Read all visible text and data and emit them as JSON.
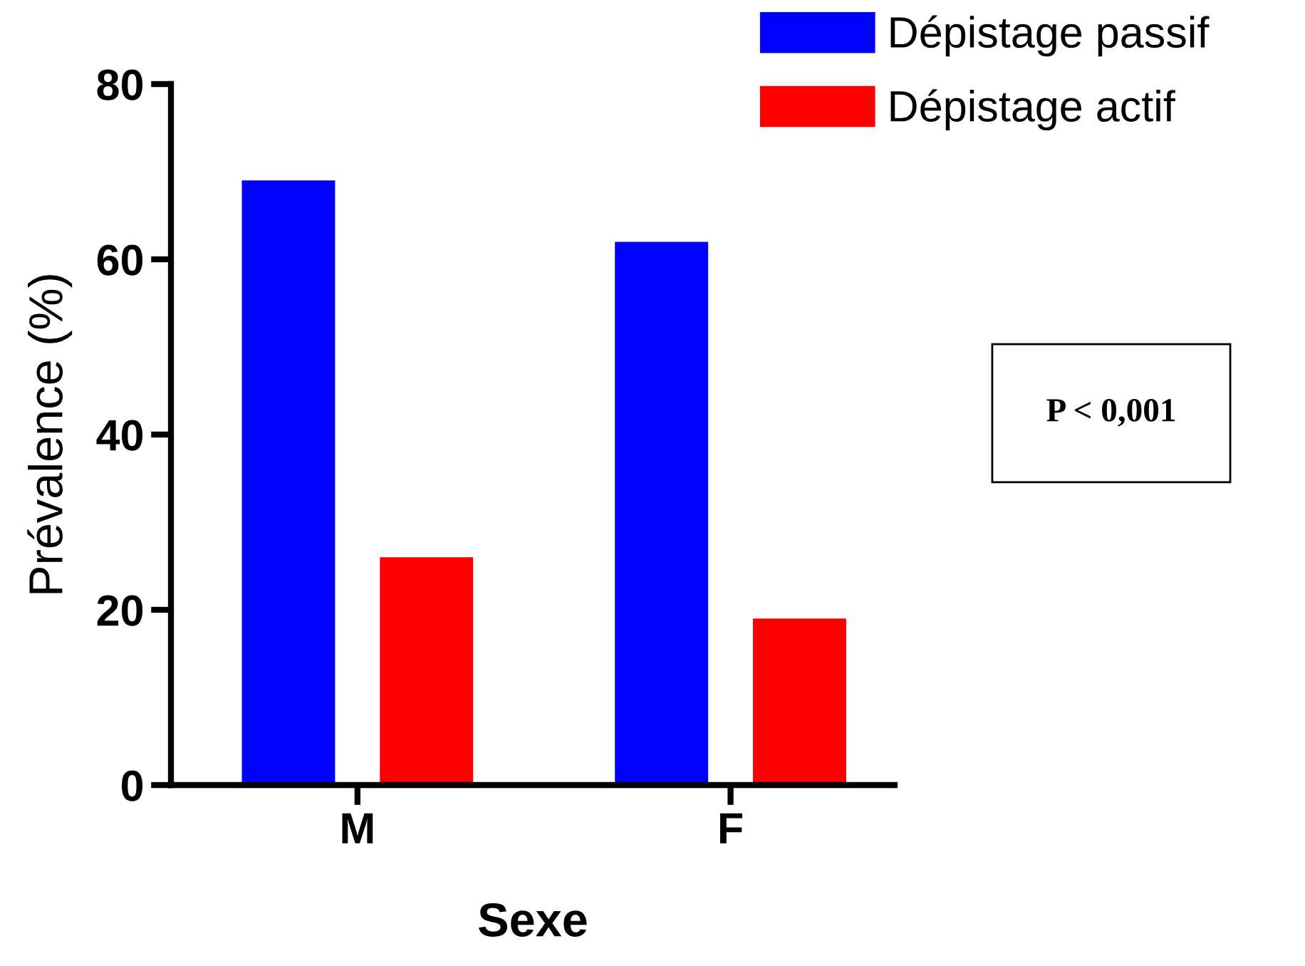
{
  "chart_data": {
    "type": "bar",
    "xlabel": "Sexe",
    "ylabel": "Prévalence (%)",
    "categories": [
      "M",
      "F"
    ],
    "series": [
      {
        "name": "Dépistage passif",
        "color": "#0000ff",
        "values": [
          69,
          62
        ]
      },
      {
        "name": "Dépistage actif",
        "color": "#ff0000",
        "values": [
          26,
          19
        ]
      }
    ],
    "ylim": [
      0,
      80
    ],
    "yticks": [
      0,
      20,
      40,
      60,
      80
    ],
    "grid": false,
    "legend": "top right",
    "annotations": [
      "P < 0,001"
    ]
  }
}
